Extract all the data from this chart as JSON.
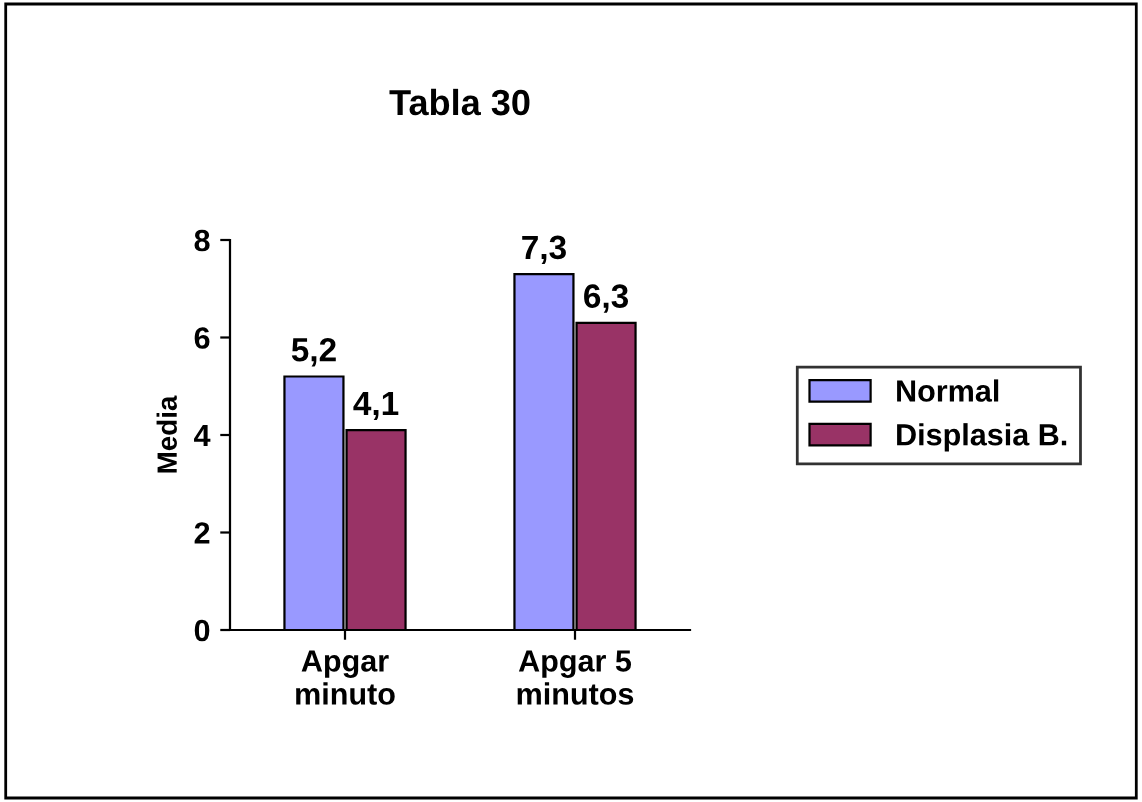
{
  "chart_data": {
    "type": "bar",
    "title": "Tabla 30",
    "ylabel": "Media",
    "categories": [
      "Apgar\nminuto",
      "Apgar 5\nminutos"
    ],
    "series": [
      {
        "name": "Normal",
        "color": "#9999ff",
        "values": [
          5.2,
          7.3
        ],
        "value_labels": [
          "5,2",
          "7,3"
        ]
      },
      {
        "name": "Displasia B.",
        "color": "#993366",
        "values": [
          4.1,
          6.3
        ],
        "value_labels": [
          "4,1",
          "6,3"
        ]
      }
    ],
    "ylim": [
      0,
      8
    ],
    "yticks": [
      0,
      2,
      4,
      6,
      8
    ],
    "grid": false,
    "legend": "right"
  }
}
